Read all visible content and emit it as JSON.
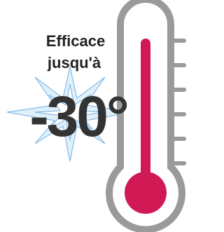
{
  "text": {
    "line1": "Efficace",
    "line2": "jusqu'à",
    "temperature": "-30°"
  }
}
